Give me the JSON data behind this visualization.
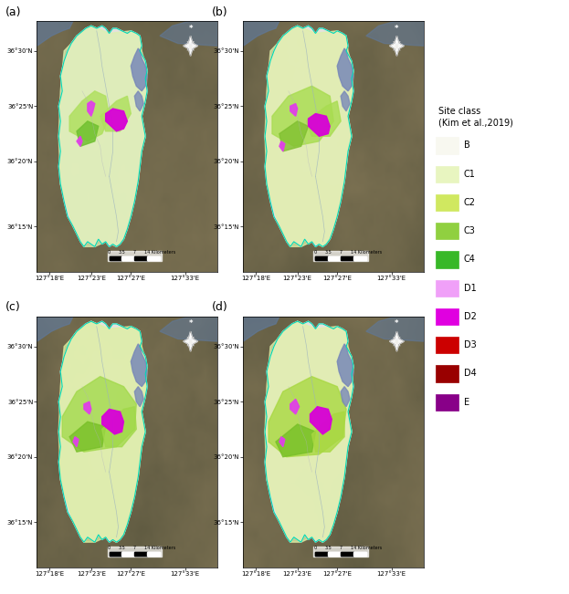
{
  "panels": [
    "(a)",
    "(b)",
    "(c)",
    "(d)"
  ],
  "panel_label_fontsize": 9,
  "legend_title_line1": "Site class",
  "legend_title_line2": "(Kim et al.,2019)",
  "legend_title_fontsize": 7,
  "legend_labels": [
    "B",
    "C1",
    "C2",
    "C3",
    "C4",
    "D1",
    "D2",
    "D3",
    "D4",
    "E"
  ],
  "legend_colors": [
    "#f8f8f0",
    "#e8f5c0",
    "#d0e860",
    "#90d040",
    "#38b828",
    "#f0a0f8",
    "#e000e0",
    "#cc0000",
    "#990000",
    "#880088"
  ],
  "legend_fontsize": 7,
  "x_ticks": [
    "127°18'E",
    "127°23'E",
    "127°27'E",
    "127°33'E"
  ],
  "y_ticks": [
    "36°30'N",
    "36°25'N",
    "36°20'N",
    "36°15'N"
  ],
  "tick_fontsize": 5,
  "background_color": "#ffffff",
  "terrain_dark": "#5a5840",
  "terrain_medium": "#6a6848",
  "terrain_light": "#787055",
  "inland_white": "#f2f0ec",
  "border_cyan": "#00d8b8",
  "water_blue": "#7888b8",
  "light_green1": "#ddf0b0",
  "light_green2": "#c8e878",
  "med_green": "#90d040",
  "dark_green": "#40b030",
  "magenta": "#e000e0",
  "pink": "#e880e8",
  "figsize": [
    6.23,
    6.51
  ],
  "dpi": 100
}
